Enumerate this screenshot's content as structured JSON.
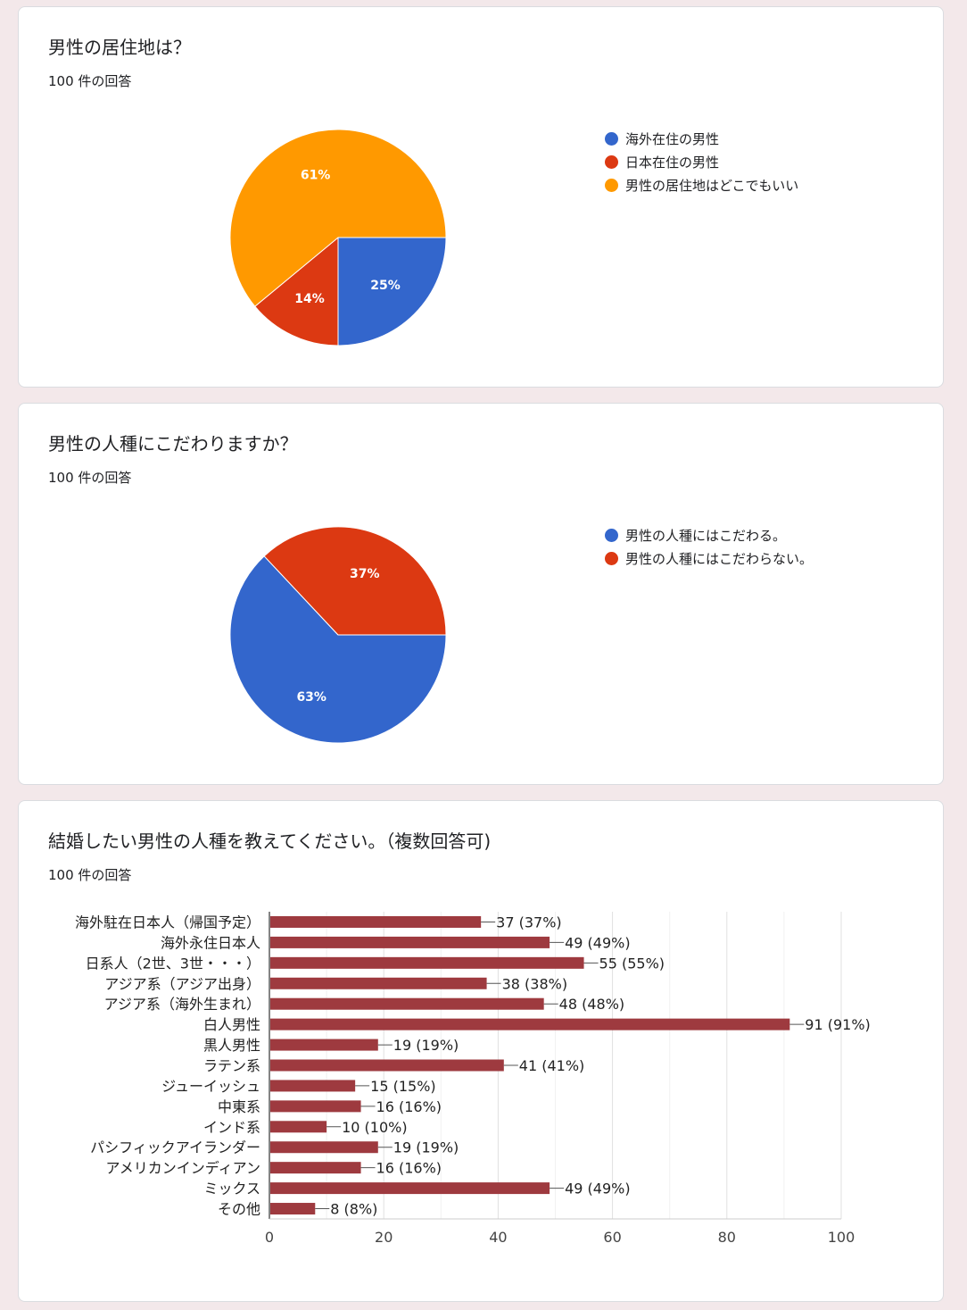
{
  "cards": [
    {
      "title": "男性の居住地は？",
      "count": "100 件の回答",
      "chart_data": {
        "type": "pie",
        "labels": [
          "海外在住の男性",
          "日本在住の男性",
          "男性の居住地はどこでもいい"
        ],
        "values": [
          25,
          14,
          61
        ],
        "value_labels": [
          "25%",
          "14%",
          "61%"
        ],
        "colors": [
          "#3366cc",
          "#dc3912",
          "#ff9900"
        ],
        "legend_position": "right"
      }
    },
    {
      "title": "男性の人種にこだわりますか？",
      "count": "100 件の回答",
      "chart_data": {
        "type": "pie",
        "labels": [
          "男性の人種にはこだわる。",
          "男性の人種にはこだわらない。"
        ],
        "values": [
          63,
          37
        ],
        "value_labels": [
          "63%",
          "37%"
        ],
        "colors": [
          "#3366cc",
          "#dc3912"
        ],
        "legend_position": "right"
      }
    },
    {
      "title": "結婚したい男性の人種を教えてください。（複数回答可)",
      "count": "100 件の回答",
      "chart_data": {
        "type": "bar",
        "orientation": "horizontal",
        "categories": [
          "海外駐在日本人（帰国予定）",
          "海外永住日本人",
          "日系人（2世、3世・・・）",
          "アジア系（アジア出身）",
          "アジア系（海外生まれ）",
          "白人男性",
          "黒人男性",
          "ラテン系",
          "ジューイッシュ",
          "中東系",
          "インド系",
          "パシフィックアイランダー",
          "アメリカンインディアン",
          "ミックス",
          "その他"
        ],
        "values": [
          37,
          49,
          55,
          38,
          48,
          91,
          19,
          41,
          15,
          16,
          10,
          19,
          16,
          49,
          8
        ],
        "value_labels": [
          "37 (37%)",
          "49 (49%)",
          "55 (55%)",
          "38 (38%)",
          "48 (48%)",
          "91 (91%)",
          "19 (19%)",
          "41 (41%)",
          "15 (15%)",
          "16 (16%)",
          "10 (10%)",
          "19 (19%)",
          "16 (16%)",
          "49 (49%)",
          "8 (8%)"
        ],
        "xlim": [
          0,
          100
        ],
        "xticks": [
          "0",
          "20",
          "40",
          "60",
          "80",
          "100"
        ],
        "color": "#9e3a3f",
        "grid": true
      }
    }
  ]
}
